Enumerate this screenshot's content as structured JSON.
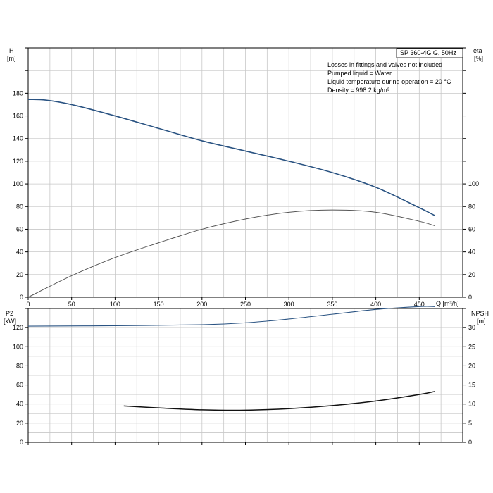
{
  "chart_data": [
    {
      "type": "line",
      "title": "SP 360-4G G, 50Hz",
      "notes": [
        "Losses in fittings and valves not included",
        "Pumped liquid = Water",
        "Liquid temperature during operation = 20 °C",
        "Density = 998.2 kg/m³"
      ],
      "xlabel": "Q [m³/h]",
      "ylabel_left": "H",
      "ylabel_left_unit": "[m]",
      "ylabel_right": "eta",
      "ylabel_right_unit": "[%]",
      "xlim": [
        0,
        500
      ],
      "ylim_left": [
        0,
        220
      ],
      "ylim_right": [
        0,
        220
      ],
      "x_ticks": [
        0,
        50,
        100,
        150,
        200,
        250,
        300,
        350,
        400,
        450
      ],
      "y_ticks_left": [
        0,
        20,
        40,
        60,
        80,
        100,
        120,
        140,
        160,
        180
      ],
      "y_ticks_right": [
        0,
        20,
        40,
        60,
        80,
        100
      ],
      "grid": true,
      "series": [
        {
          "name": "H",
          "axis": "left",
          "color": "#2a5382",
          "x": [
            0,
            20,
            50,
            100,
            150,
            200,
            250,
            300,
            350,
            400,
            450,
            468
          ],
          "y": [
            174.5,
            174,
            170,
            160,
            149,
            138,
            129,
            120,
            110,
            97,
            79,
            72
          ]
        },
        {
          "name": "eta",
          "axis": "right",
          "color": "#555555",
          "x": [
            0,
            50,
            100,
            150,
            200,
            250,
            300,
            350,
            400,
            450,
            468
          ],
          "y": [
            0,
            19,
            35,
            48,
            60,
            69,
            75,
            77,
            75,
            67,
            63
          ]
        }
      ]
    },
    {
      "type": "line",
      "xlabel": "",
      "ylabel_left": "P2",
      "ylabel_left_unit": "[kW]",
      "ylabel_right": "NPSH",
      "ylabel_right_unit": "[m]",
      "xlim": [
        0,
        500
      ],
      "ylim_left": [
        0,
        140
      ],
      "ylim_right": [
        0,
        35
      ],
      "y_ticks_left": [
        0,
        20,
        40,
        60,
        80,
        100,
        120
      ],
      "y_ticks_right": [
        0,
        5,
        10,
        15,
        20,
        25,
        30
      ],
      "grid": true,
      "series": [
        {
          "name": "P2",
          "axis": "left",
          "color": "#2a5382",
          "x": [
            0,
            100,
            200,
            250,
            300,
            350,
            400,
            450,
            468
          ],
          "y": [
            121.5,
            122,
            123,
            125,
            129,
            134,
            139,
            142,
            142
          ]
        },
        {
          "name": "NPSH",
          "axis": "right",
          "color": "#111111",
          "x": [
            110,
            150,
            200,
            250,
            300,
            350,
            400,
            450,
            468
          ],
          "y": [
            9.5,
            9,
            8.5,
            8.4,
            8.8,
            9.6,
            10.8,
            12.5,
            13.3
          ]
        }
      ]
    }
  ]
}
